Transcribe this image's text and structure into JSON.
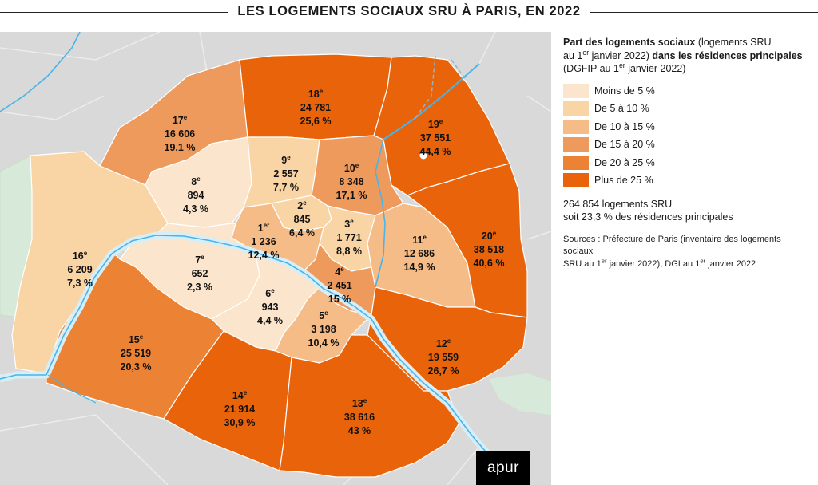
{
  "title": "LES LOGEMENTS SOCIAUX SRU À PARIS, EN 2022",
  "legend": {
    "heading_bold_1": "Part des logements sociaux",
    "heading_1": " (logements SRU",
    "heading_2a": "au 1",
    "heading_2sup": "er",
    "heading_2b": " janvier 2022) ",
    "heading_bold_2": "dans les résidences principales",
    "heading_3a": "(DGFIP au 1",
    "heading_3sup": "er",
    "heading_3b": " janvier 2022)",
    "classes": [
      {
        "label": "Moins de 5 %",
        "color": "#fbe5cc"
      },
      {
        "label": "De 5 à 10 %",
        "color": "#f9d4a4"
      },
      {
        "label": "De 10 à 15 %",
        "color": "#f5bc87"
      },
      {
        "label": "De 15 à 20 %",
        "color": "#ef9a5d"
      },
      {
        "label": "De 20 à 25 %",
        "color": "#ec8233"
      },
      {
        "label": "Plus de 25 %",
        "color": "#e8630a"
      }
    ]
  },
  "total_line1": "264 854 logements SRU",
  "total_line2": "soit 23,3 % des résidences principales",
  "sources": {
    "line1": "Sources : Préfecture de Paris (inventaire des logements sociaux",
    "line2a": "SRU au 1",
    "line2sup": "er",
    "line2b": " janvier 2022), DGI au 1",
    "line2sup2": "er",
    "line2c": " janvier 2022"
  },
  "logo": "apur",
  "arrondissements": [
    {
      "num": "1",
      "sup": "er",
      "count": "1 236",
      "pct": "12,4 %",
      "class": 2
    },
    {
      "num": "2",
      "sup": "e",
      "count": "845",
      "pct": "6,4 %",
      "class": 1
    },
    {
      "num": "3",
      "sup": "e",
      "count": "1 771",
      "pct": "8,8 %",
      "class": 1
    },
    {
      "num": "4",
      "sup": "e",
      "count": "2 451",
      "pct": "15 %",
      "class": 3
    },
    {
      "num": "5",
      "sup": "e",
      "count": "3 198",
      "pct": "10,4 %",
      "class": 2
    },
    {
      "num": "6",
      "sup": "e",
      "count": "943",
      "pct": "4,4 %",
      "class": 0
    },
    {
      "num": "7",
      "sup": "e",
      "count": "652",
      "pct": "2,3 %",
      "class": 0
    },
    {
      "num": "8",
      "sup": "e",
      "count": "894",
      "pct": "4,3 %",
      "class": 0
    },
    {
      "num": "9",
      "sup": "e",
      "count": "2 557",
      "pct": "7,7 %",
      "class": 1
    },
    {
      "num": "10",
      "sup": "e",
      "count": "8 348",
      "pct": "17,1 %",
      "class": 3
    },
    {
      "num": "11",
      "sup": "e",
      "count": "12 686",
      "pct": "14,9 %",
      "class": 2
    },
    {
      "num": "12",
      "sup": "e",
      "count": "19 559",
      "pct": "26,7 %",
      "class": 5
    },
    {
      "num": "13",
      "sup": "e",
      "count": "38 616",
      "pct": "43 %",
      "class": 5
    },
    {
      "num": "14",
      "sup": "e",
      "count": "21 914",
      "pct": "30,9 %",
      "class": 5
    },
    {
      "num": "15",
      "sup": "e",
      "count": "25 519",
      "pct": "20,3 %",
      "class": 4
    },
    {
      "num": "16",
      "sup": "e",
      "count": "6 209",
      "pct": "7,3 %",
      "class": 1
    },
    {
      "num": "17",
      "sup": "e",
      "count": "16 606",
      "pct": "19,1 %",
      "class": 3
    },
    {
      "num": "18",
      "sup": "e",
      "count": "24 781",
      "pct": "25,6 %",
      "class": 5
    },
    {
      "num": "19",
      "sup": "e",
      "count": "37 551",
      "pct": "44,4 %",
      "class": 5
    },
    {
      "num": "20",
      "sup": "e",
      "count": "38 518",
      "pct": "40,6 %",
      "class": 5
    }
  ]
}
